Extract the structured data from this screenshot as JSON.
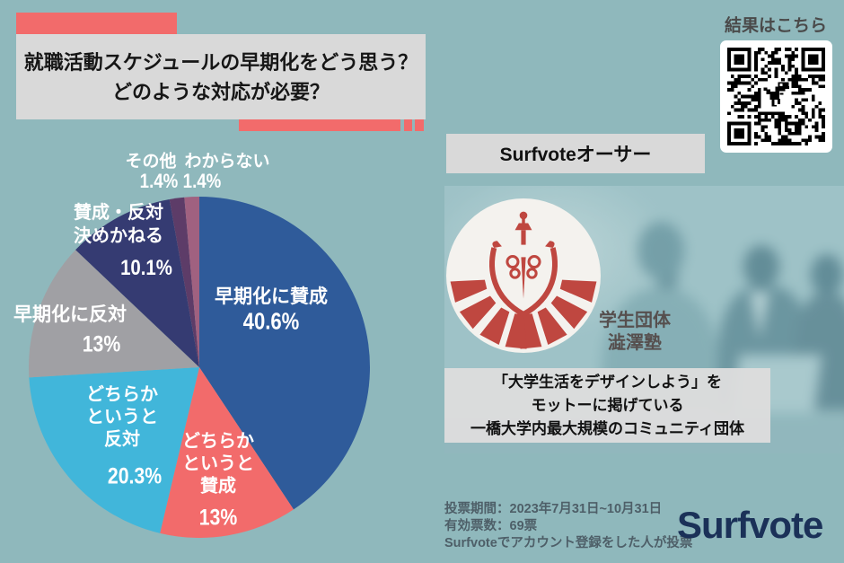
{
  "colors": {
    "background": "#8fb8bc",
    "accent": "#f26b6b",
    "panel_gray": "#d9d9d9",
    "brand_navy": "#1b3158",
    "crest_red": "#bf4740",
    "pie_label_text": "#ffffff"
  },
  "title": {
    "line1": "就職活動スケジュールの早期化をどう思う？",
    "line2": "どのような対応が必要？"
  },
  "qr": {
    "caption": "結果はこちら"
  },
  "author_panel": {
    "header": "Surfvoteオーサー",
    "org_name": "学生団体\n澁澤塾",
    "description": "「大学生活をデザインしよう」を\nモットーに掲げている\n一橋大学内最大規模のコミュニティ団体"
  },
  "footer": {
    "period": "投票期間：2023年7月31日~10月31日",
    "valid_votes": "有効票数：69票",
    "note": "Surfvoteでアカウント登録をした人が投票",
    "brand": "Surfvote"
  },
  "chart_data": {
    "type": "pie",
    "title": "就職活動スケジュールの早期化をどう思う？どのような対応が必要？",
    "start_angle_deg": 0,
    "direction": "clockwise",
    "legend_position": "on-slice-labels",
    "slices": [
      {
        "label": "早期化に賛成",
        "display": "早期化に賛成",
        "value": 40.6,
        "pct_label": "40.6%",
        "color": "#2f5b9a"
      },
      {
        "label": "どちらかというと賛成",
        "display": "どちらか\nというと\n賛成",
        "value": 13,
        "pct_label": "13%",
        "color": "#f26b6b"
      },
      {
        "label": "どちらかというと反対",
        "display": "どちらか\nというと\n反対",
        "value": 20.3,
        "pct_label": "20.3%",
        "color": "#41b6da"
      },
      {
        "label": "早期化に反対",
        "display": "早期化に反対",
        "value": 13,
        "pct_label": "13%",
        "color": "#a0a0a4"
      },
      {
        "label": "賛成・反対決めかねる",
        "display": "賛成・反対\n決めかねる",
        "value": 10.1,
        "pct_label": "10.1%",
        "color": "#353b72"
      },
      {
        "label": "その他",
        "display": "その他",
        "value": 1.4,
        "pct_label": "1.4%",
        "color": "#5d3c68"
      },
      {
        "label": "わからない",
        "display": "わからない",
        "value": 1.4,
        "pct_label": "1.4%",
        "color": "#a06180"
      }
    ]
  }
}
